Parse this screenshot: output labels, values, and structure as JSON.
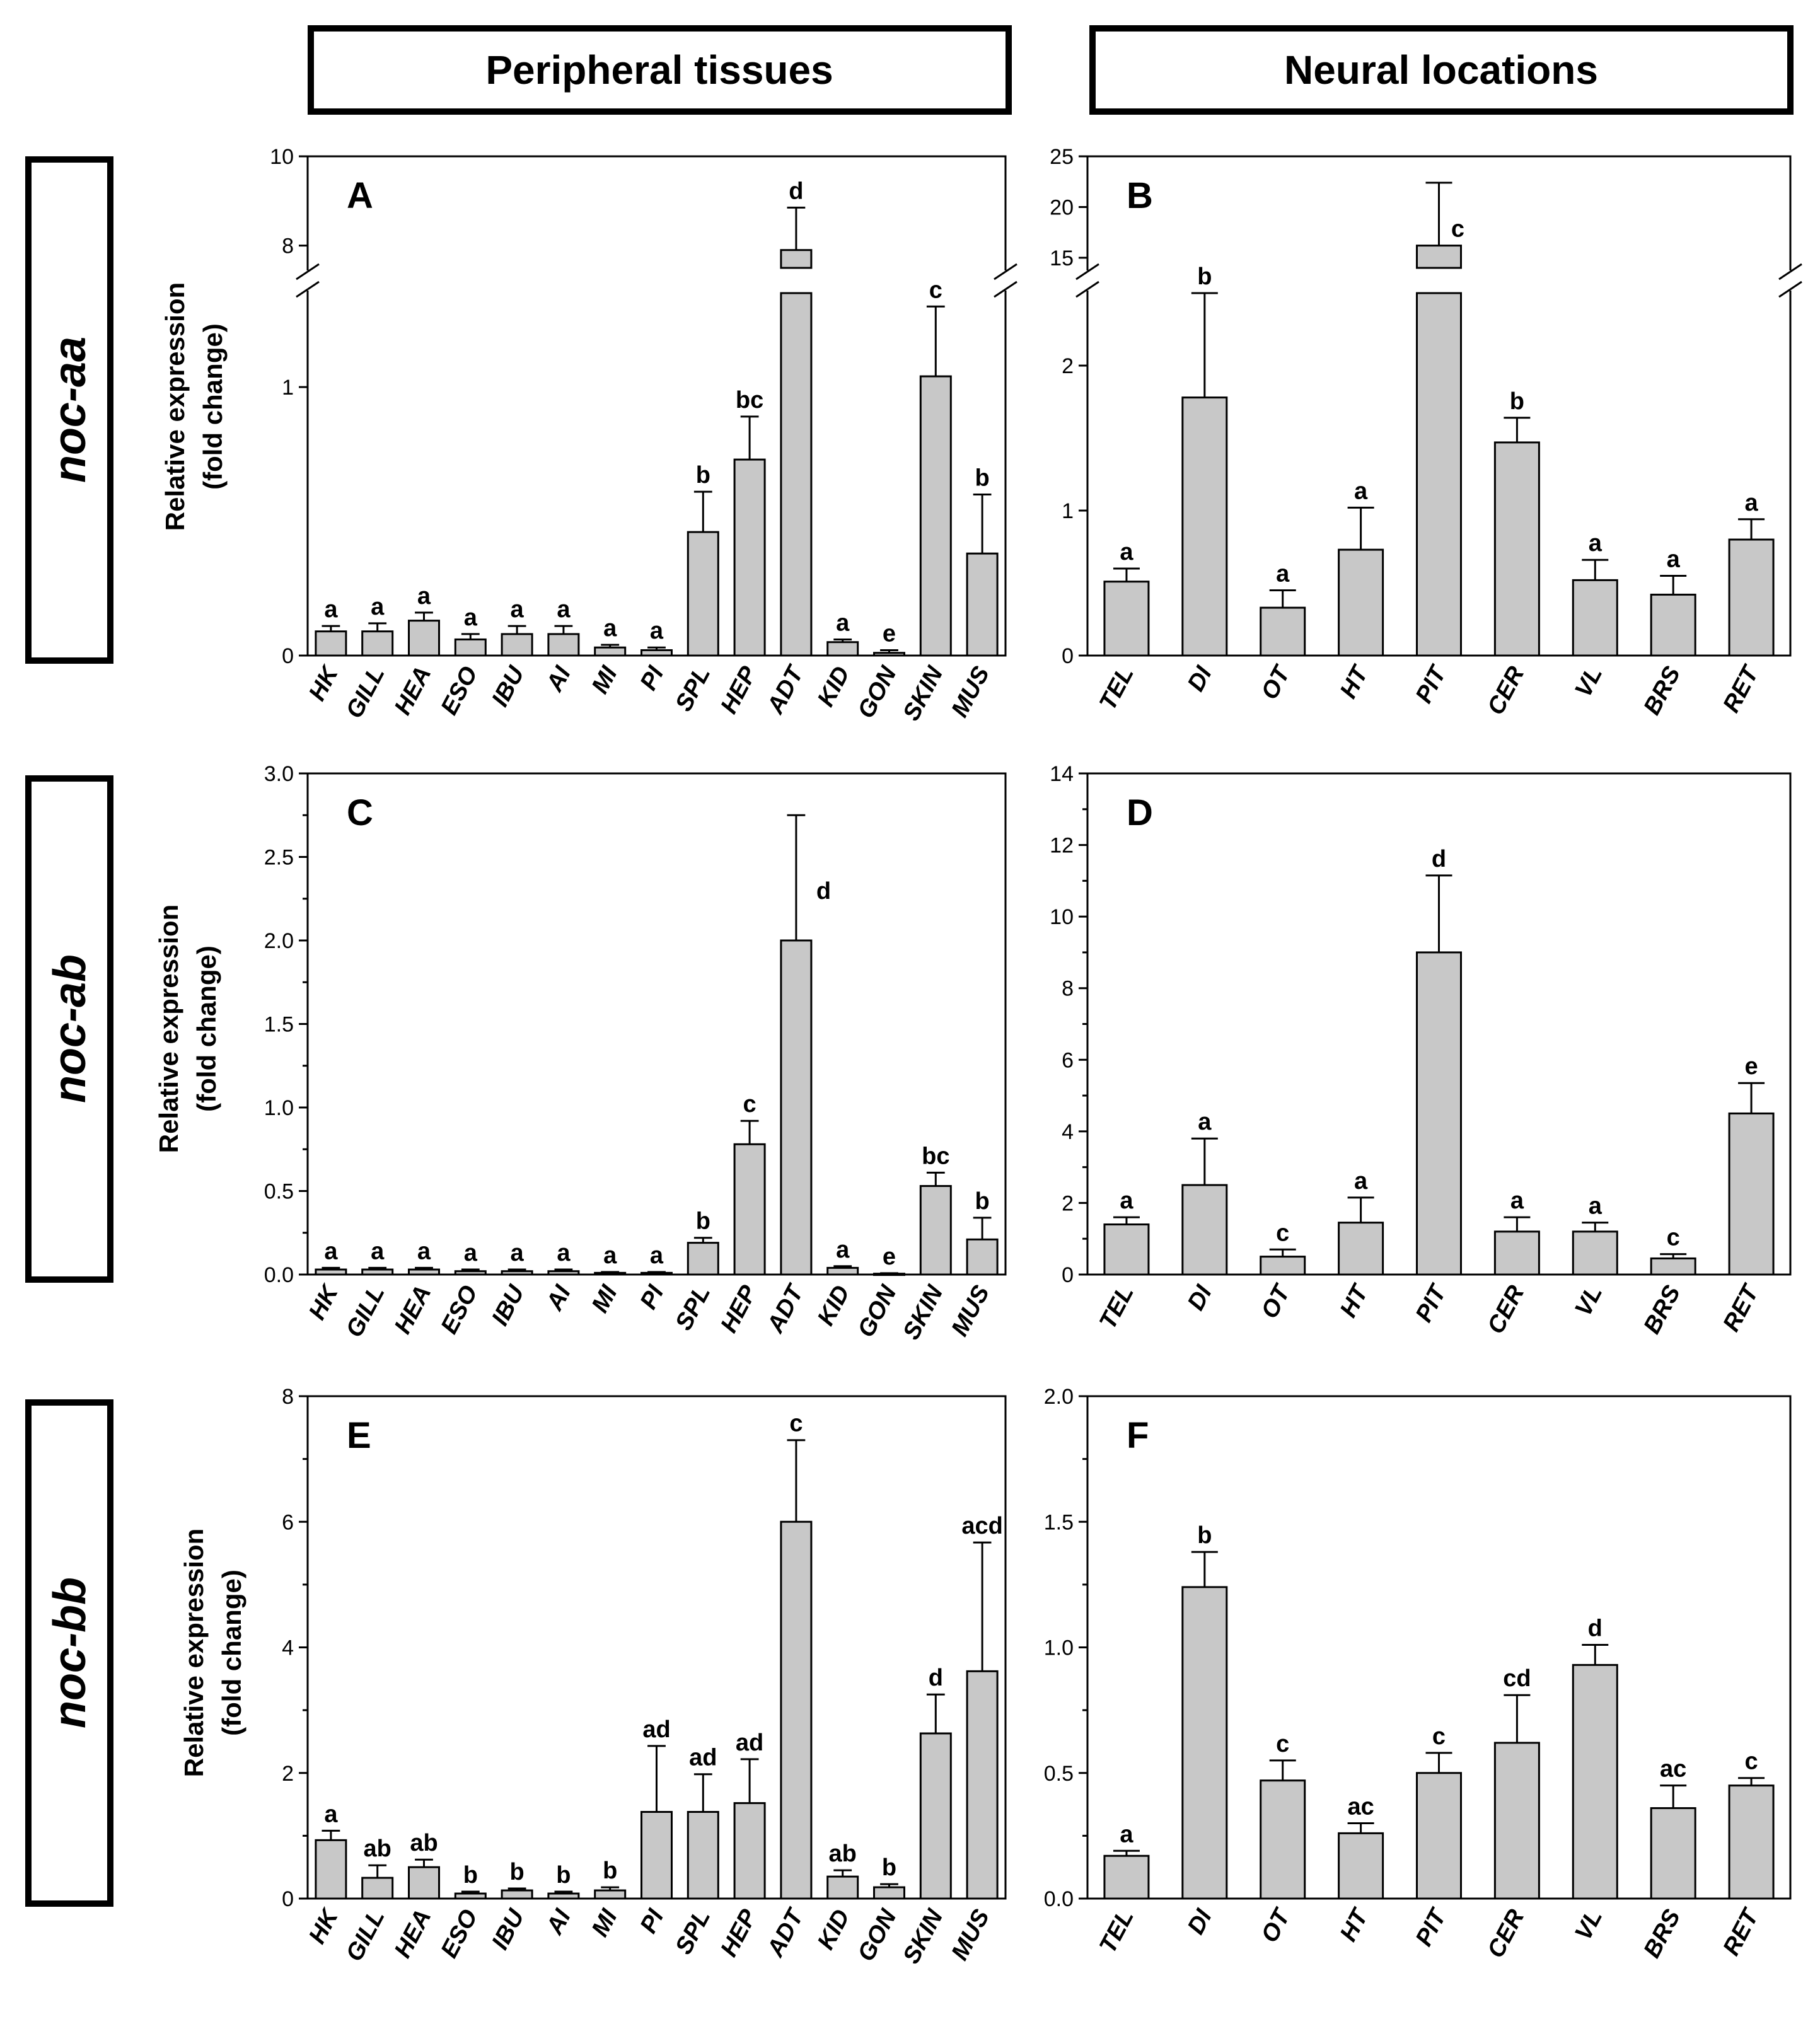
{
  "headers": {
    "left": "Peripheral tissues",
    "right": "Neural locations"
  },
  "rows": [
    {
      "label": "noc-aa"
    },
    {
      "label": "noc-ab"
    },
    {
      "label": "noc-bb"
    }
  ],
  "y_axis_label_line1": "Relative expression",
  "y_axis_label_line2": "(fold change)",
  "colors": {
    "bar_fill": "#c8c8c8",
    "stroke": "#000000"
  },
  "chart_data": [
    {
      "panel": "A",
      "type": "bar",
      "gene": "noc-aa",
      "group": "Peripheral tissues",
      "ylabel": "Relative expression (fold change)",
      "broken_axis": true,
      "lower_range": [
        0,
        1.35
      ],
      "upper_range": [
        7.5,
        10
      ],
      "lower_ticks": [
        0,
        1
      ],
      "upper_ticks": [
        8,
        10
      ],
      "categories": [
        "HK",
        "GILL",
        "HEA",
        "ESO",
        "IBU",
        "AI",
        "MI",
        "PI",
        "SPL",
        "HEP",
        "ADT",
        "KID",
        "GON",
        "SKIN",
        "MUS"
      ],
      "values": [
        0.09,
        0.09,
        0.13,
        0.06,
        0.08,
        0.08,
        0.03,
        0.02,
        0.46,
        0.73,
        7.9,
        0.05,
        0.01,
        1.04,
        0.38
      ],
      "errors": [
        0.02,
        0.03,
        0.03,
        0.02,
        0.03,
        0.03,
        0.01,
        0.01,
        0.15,
        0.16,
        0.95,
        0.01,
        0.01,
        0.26,
        0.22
      ],
      "letters": [
        "a",
        "a",
        "a",
        "a",
        "a",
        "a",
        "a",
        "a",
        "b",
        "bc",
        "d",
        "a",
        "e",
        "c",
        "b"
      ]
    },
    {
      "panel": "B",
      "type": "bar",
      "gene": "noc-aa",
      "group": "Neural locations",
      "ylabel": "Relative expression (fold change)",
      "broken_axis": true,
      "lower_range": [
        0,
        2.5
      ],
      "upper_range": [
        14,
        25
      ],
      "lower_ticks": [
        0,
        1,
        2
      ],
      "upper_ticks": [
        15,
        20,
        25
      ],
      "categories": [
        "TEL",
        "DI",
        "OT",
        "HT",
        "PIT",
        "CER",
        "VL",
        "BRS",
        "RET"
      ],
      "values": [
        0.51,
        1.78,
        0.33,
        0.73,
        16.2,
        1.47,
        0.52,
        0.42,
        0.8
      ],
      "errors": [
        0.09,
        0.72,
        0.12,
        0.29,
        6.2,
        0.17,
        0.14,
        0.13,
        0.14
      ],
      "letters": [
        "a",
        "b",
        "a",
        "a",
        "c",
        "b",
        "a",
        "a",
        "a"
      ]
    },
    {
      "panel": "C",
      "type": "bar",
      "gene": "noc-ab",
      "group": "Peripheral tissues",
      "ylabel": "Relative expression (fold change)",
      "ylim": [
        0,
        3.0
      ],
      "ticks": [
        "0.0",
        "0.5",
        "1.0",
        "1.5",
        "2.0",
        "2.5",
        "3.0"
      ],
      "categories": [
        "HK",
        "GILL",
        "HEA",
        "ESO",
        "IBU",
        "AI",
        "MI",
        "PI",
        "SPL",
        "HEP",
        "ADT",
        "KID",
        "GON",
        "SKIN",
        "MUS"
      ],
      "values": [
        0.03,
        0.03,
        0.03,
        0.02,
        0.02,
        0.02,
        0.01,
        0.01,
        0.19,
        0.78,
        2.0,
        0.04,
        0.005,
        0.53,
        0.21
      ],
      "errors": [
        0.01,
        0.01,
        0.01,
        0.01,
        0.01,
        0.01,
        0.005,
        0.005,
        0.03,
        0.14,
        0.75,
        0.01,
        0.003,
        0.08,
        0.13
      ],
      "letters": [
        "a",
        "a",
        "a",
        "a",
        "a",
        "a",
        "a",
        "a",
        "b",
        "c",
        "d",
        "a",
        "e",
        "bc",
        "b"
      ]
    },
    {
      "panel": "D",
      "type": "bar",
      "gene": "noc-ab",
      "group": "Neural locations",
      "ylabel": "Relative expression (fold change)",
      "ylim": [
        0,
        14
      ],
      "ticks": [
        "0",
        "2",
        "4",
        "6",
        "8",
        "10",
        "12",
        "14"
      ],
      "categories": [
        "TEL",
        "DI",
        "OT",
        "HT",
        "PIT",
        "CER",
        "VL",
        "BRS",
        "RET"
      ],
      "values": [
        1.4,
        2.5,
        0.5,
        1.45,
        9.0,
        1.2,
        1.2,
        0.45,
        4.5
      ],
      "errors": [
        0.2,
        1.3,
        0.2,
        0.7,
        2.15,
        0.4,
        0.25,
        0.12,
        0.85
      ],
      "letters": [
        "a",
        "a",
        "c",
        "a",
        "d",
        "a",
        "a",
        "c",
        "e"
      ]
    },
    {
      "panel": "E",
      "type": "bar",
      "gene": "noc-bb",
      "group": "Peripheral tissues",
      "ylabel": "Relative expression (fold change)",
      "ylim": [
        0,
        8
      ],
      "ticks": [
        "0",
        "2",
        "4",
        "6",
        "8"
      ],
      "categories": [
        "HK",
        "GILL",
        "HEA",
        "ESO",
        "IBU",
        "AI",
        "MI",
        "PI",
        "SPL",
        "HEP",
        "ADT",
        "KID",
        "GON",
        "SKIN",
        "MUS"
      ],
      "values": [
        0.93,
        0.33,
        0.5,
        0.08,
        0.13,
        0.08,
        0.13,
        1.38,
        1.38,
        1.52,
        6.0,
        0.35,
        0.18,
        2.63,
        3.62
      ],
      "errors": [
        0.15,
        0.2,
        0.12,
        0.03,
        0.03,
        0.03,
        0.05,
        1.05,
        0.6,
        0.7,
        1.3,
        0.1,
        0.05,
        0.62,
        2.05
      ],
      "letters": [
        "a",
        "ab",
        "ab",
        "b",
        "b",
        "b",
        "b",
        "ad",
        "ad",
        "ad",
        "c",
        "ab",
        "b",
        "d",
        "acd"
      ]
    },
    {
      "panel": "F",
      "type": "bar",
      "gene": "noc-bb",
      "group": "Neural locations",
      "ylabel": "Relative expression (fold change)",
      "ylim": [
        0,
        2.0
      ],
      "ticks": [
        "0.0",
        "0.5",
        "1.0",
        "1.5",
        "2.0"
      ],
      "categories": [
        "TEL",
        "DI",
        "OT",
        "HT",
        "PIT",
        "CER",
        "VL",
        "BRS",
        "RET"
      ],
      "values": [
        0.17,
        1.24,
        0.47,
        0.26,
        0.5,
        0.62,
        0.93,
        0.36,
        0.45
      ],
      "errors": [
        0.02,
        0.14,
        0.08,
        0.04,
        0.08,
        0.19,
        0.08,
        0.09,
        0.03
      ],
      "letters": [
        "a",
        "b",
        "c",
        "ac",
        "c",
        "cd",
        "d",
        "ac",
        "c"
      ]
    }
  ]
}
